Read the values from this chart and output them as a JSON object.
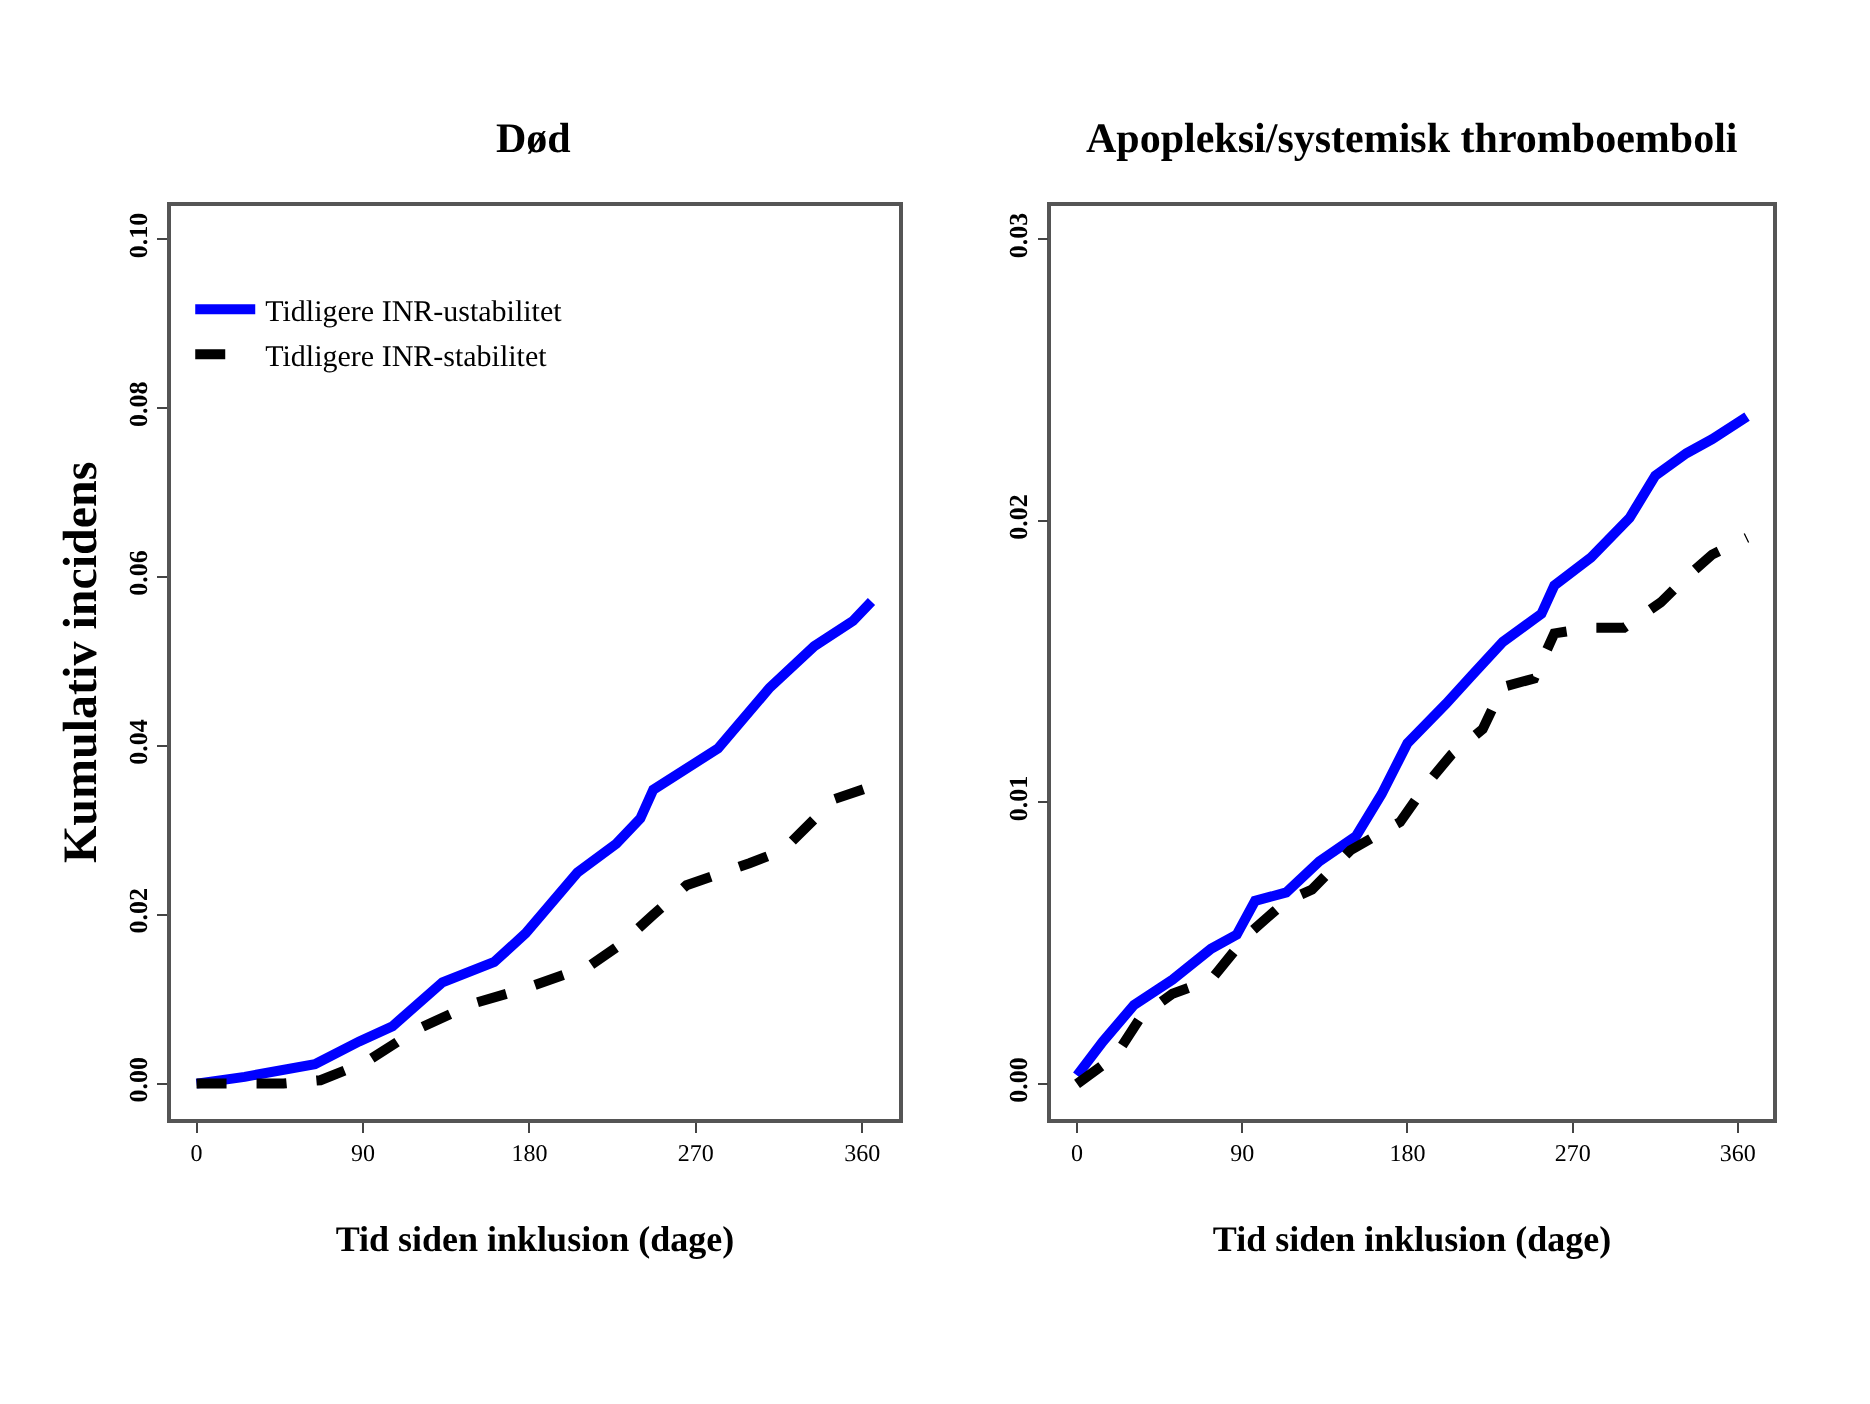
{
  "chart_data": [
    {
      "type": "line",
      "title": "Død",
      "xlabel": "Tid siden inklusion (dage)",
      "ylabel": "Kumulativ incidens",
      "legend": "top left",
      "xlim": [
        -14,
        380
      ],
      "ylim": [
        -0.0042,
        0.104
      ],
      "xticks": [
        0,
        90,
        180,
        270,
        360
      ],
      "yticks": [
        {
          "value": 0,
          "label": "0.00"
        },
        {
          "value": 0.02,
          "label": "0.02"
        },
        {
          "value": 0.04,
          "label": "0.04"
        },
        {
          "value": 0.06,
          "label": "0.06"
        },
        {
          "value": 0.08,
          "label": "0.08"
        },
        {
          "value": 0.1,
          "label": "0.10"
        }
      ],
      "series": [
        {
          "name": "Tidligere INR-ustabilitet",
          "color": "#0000ff",
          "line_style": "solid",
          "x": [
            0,
            26,
            64,
            88,
            106,
            133,
            161,
            178,
            206,
            227,
            240,
            247,
            282,
            310,
            334,
            355,
            365
          ],
          "values": [
            0,
            0.0008,
            0.0023,
            0.005,
            0.0068,
            0.012,
            0.0144,
            0.0178,
            0.025,
            0.0284,
            0.0314,
            0.0348,
            0.0397,
            0.0469,
            0.0518,
            0.0548,
            0.0571
          ]
        },
        {
          "name": "Tidligere INR-stabilitet",
          "color": "#000000",
          "line_style": "dashed",
          "x": [
            0,
            47,
            67,
            92,
            119,
            150,
            178,
            213,
            230,
            247,
            265,
            299,
            317,
            345,
            365
          ],
          "values": [
            0,
            0,
            0.0004,
            0.0026,
            0.0064,
            0.0095,
            0.0113,
            0.014,
            0.0166,
            0.02,
            0.0235,
            0.0261,
            0.0276,
            0.0337,
            0.0352
          ]
        }
      ]
    },
    {
      "type": "line",
      "title": "Apopleksi/systemisk thromboemboli",
      "xlabel": "Tid siden inklusion (dage)",
      "xlim": [
        -14,
        379
      ],
      "ylim": [
        -0.00125,
        0.0312
      ],
      "xticks": [
        0,
        90,
        180,
        270,
        360
      ],
      "yticks": [
        {
          "value": 0,
          "label": "0.00"
        },
        {
          "value": 0.01,
          "label": "0.01"
        },
        {
          "value": 0.02,
          "label": "0.02"
        },
        {
          "value": 0.03,
          "label": "0.03"
        }
      ],
      "series": [
        {
          "color": "#0000ff",
          "line_style": "solid",
          "x": [
            0,
            14,
            31,
            52,
            73,
            87,
            97,
            114,
            132,
            152,
            166,
            180,
            201,
            215,
            232,
            253,
            260,
            280,
            301,
            315,
            332,
            346,
            365
          ],
          "values": [
            0.0003,
            0.0015,
            0.0028,
            0.0037,
            0.0048,
            0.0053,
            0.0065,
            0.0068,
            0.0079,
            0.0088,
            0.0103,
            0.0121,
            0.0135,
            0.0145,
            0.0157,
            0.0167,
            0.0177,
            0.0187,
            0.0201,
            0.0216,
            0.0224,
            0.0229,
            0.0237
          ]
        },
        {
          "color": "#000000",
          "line_style": "dashed",
          "x": [
            0,
            21,
            35,
            52,
            73,
            93,
            114,
            128,
            149,
            176,
            190,
            204,
            221,
            232,
            249,
            260,
            280,
            298,
            318,
            332,
            346,
            365
          ],
          "values": [
            0,
            0.001,
            0.0024,
            0.0032,
            0.0037,
            0.0053,
            0.0065,
            0.0069,
            0.0083,
            0.0093,
            0.0106,
            0.0117,
            0.0126,
            0.0141,
            0.0144,
            0.016,
            0.0162,
            0.0162,
            0.0171,
            0.018,
            0.0188,
            0.0194
          ]
        }
      ]
    }
  ]
}
